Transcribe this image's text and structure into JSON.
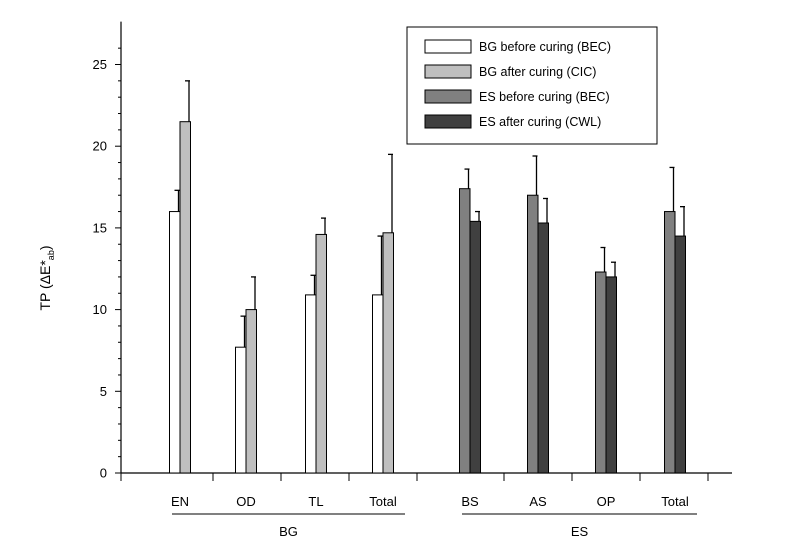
{
  "chart_data": {
    "type": "bar",
    "ylabel_main": "TP (ΔE*",
    "ylabel_sub": "ab",
    "ylabel_close": ")",
    "ylim": [
      0,
      27.5
    ],
    "yticks": [
      0,
      5,
      10,
      15,
      20,
      25
    ],
    "groups": [
      {
        "label": "BG",
        "categories": [
          "EN",
          "OD",
          "TL",
          "Total"
        ]
      },
      {
        "label": "ES",
        "categories": [
          "BS",
          "AS",
          "OP",
          "Total"
        ]
      }
    ],
    "series": [
      {
        "name": "BG before curing (BEC)",
        "color": "#ffffff",
        "group": "BG",
        "values": [
          16.0,
          7.7,
          10.9,
          10.9
        ],
        "errors": [
          1.3,
          1.9,
          1.2,
          3.6
        ]
      },
      {
        "name": "BG after curing (CIC)",
        "color": "#bfbfbf",
        "group": "BG",
        "values": [
          21.5,
          10.0,
          14.6,
          14.7
        ],
        "errors": [
          2.5,
          2.0,
          1.0,
          4.8
        ]
      },
      {
        "name": "ES before curing (BEC)",
        "color": "#808080",
        "group": "ES",
        "values": [
          17.4,
          17.0,
          12.3,
          16.0
        ],
        "errors": [
          1.2,
          2.4,
          1.5,
          2.7
        ]
      },
      {
        "name": "ES after curing (CWL)",
        "color": "#404040",
        "group": "ES",
        "values": [
          15.4,
          15.3,
          12.0,
          14.5
        ],
        "errors": [
          0.6,
          1.5,
          0.9,
          1.8
        ]
      }
    ],
    "legend_position": "top-right"
  }
}
